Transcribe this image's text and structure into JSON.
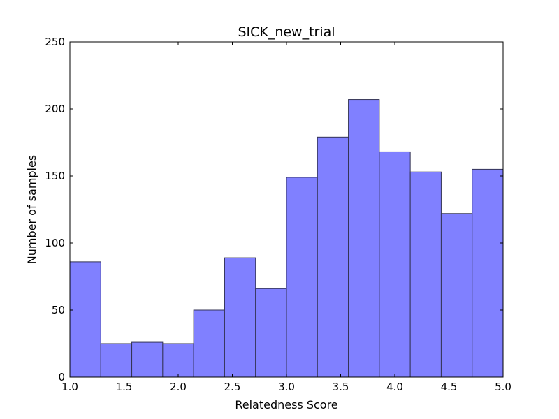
{
  "chart_data": {
    "type": "bar",
    "title": "SICK_new_trial",
    "xlabel": "Relatedness Score",
    "ylabel": "Number of samples",
    "xlim": [
      1.0,
      5.0
    ],
    "ylim": [
      0,
      250
    ],
    "xticks": [
      "1.0",
      "1.5",
      "2.0",
      "2.5",
      "3.0",
      "3.5",
      "4.0",
      "4.5",
      "5.0"
    ],
    "yticks": [
      "0",
      "50",
      "100",
      "150",
      "200",
      "250"
    ],
    "bins": [
      {
        "x0": 1.0,
        "x1": 1.2857,
        "value": 86
      },
      {
        "x0": 1.2857,
        "x1": 1.5714,
        "value": 25
      },
      {
        "x0": 1.5714,
        "x1": 1.8571,
        "value": 26
      },
      {
        "x0": 1.8571,
        "x1": 2.1429,
        "value": 25
      },
      {
        "x0": 2.1429,
        "x1": 2.4286,
        "value": 50
      },
      {
        "x0": 2.4286,
        "x1": 2.7143,
        "value": 89
      },
      {
        "x0": 2.7143,
        "x1": 3.0,
        "value": 66
      },
      {
        "x0": 3.0,
        "x1": 3.2857,
        "value": 149
      },
      {
        "x0": 3.2857,
        "x1": 3.5714,
        "value": 179
      },
      {
        "x0": 3.5714,
        "x1": 3.8571,
        "value": 207
      },
      {
        "x0": 3.8571,
        "x1": 4.1429,
        "value": 168
      },
      {
        "x0": 4.1429,
        "x1": 4.4286,
        "value": 153
      },
      {
        "x0": 4.4286,
        "x1": 4.7143,
        "value": 122
      },
      {
        "x0": 4.7143,
        "x1": 5.0,
        "value": 155
      }
    ],
    "bar_color": "#8080ff",
    "edge_color": "#333355",
    "grid": false,
    "legend": "none"
  }
}
